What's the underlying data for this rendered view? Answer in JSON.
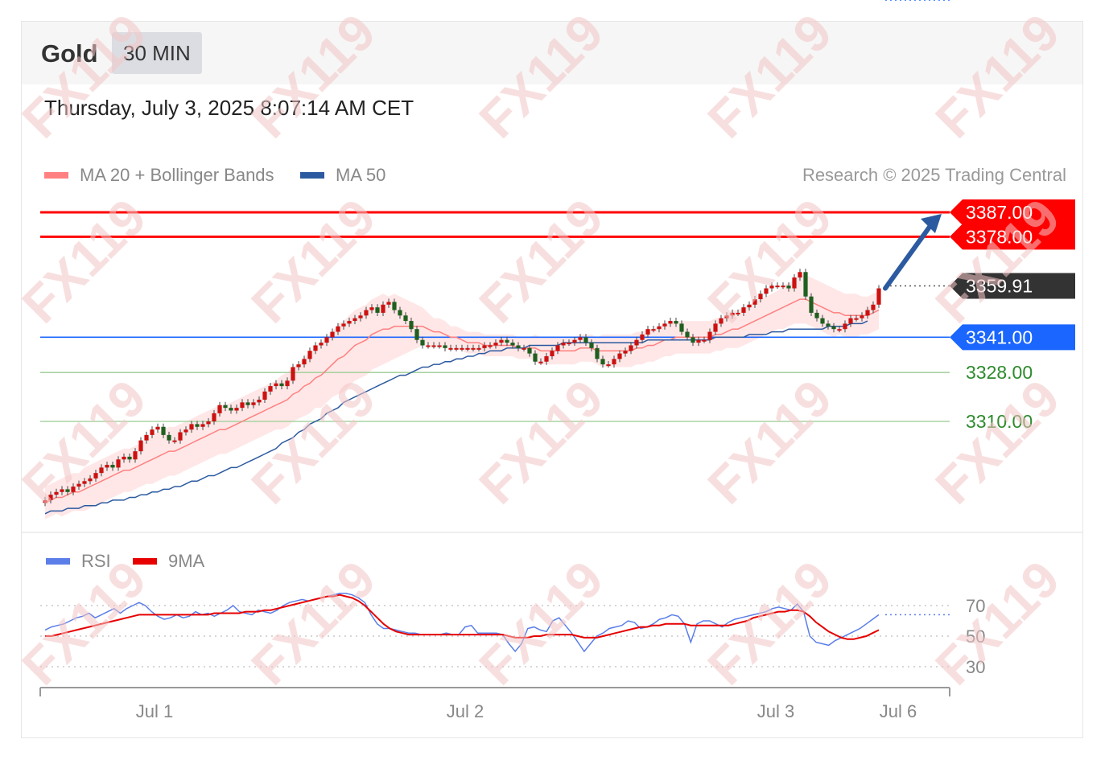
{
  "header": {
    "symbol": "Gold",
    "timeframe": "30 MIN",
    "datetime": "Thursday, July 3, 2025 8:07:14 AM CET"
  },
  "legend": {
    "ma20_label": "MA 20 + Bollinger Bands",
    "ma50_label": "MA 50",
    "credit": "Research © 2025 Trading Central"
  },
  "rsi_legend": {
    "rsi_label": "RSI",
    "ma9_label": "9MA"
  },
  "watermark": "FX119",
  "colors": {
    "resistance": "#ff0000",
    "current": "#333333",
    "pivot": "#1a66ff",
    "support": "#2e8b2e",
    "ma20": "#ff8080",
    "ma50": "#2c5aa0",
    "rsi": "#5b7ee8",
    "ma9": "#e60000",
    "candle_up": "#cc1111",
    "candle_down": "#1f5f1f",
    "band_fill": "#ffe3e3",
    "arrow": "#2c5aa0"
  },
  "chart_data": {
    "type": "candlestick",
    "x_ticks": [
      "Jul 1",
      "Jul 2",
      "Jul 3",
      "Jul 6"
    ],
    "price_levels": [
      {
        "label": "3387.00",
        "value": 3387.0,
        "kind": "resistance"
      },
      {
        "label": "3378.00",
        "value": 3378.0,
        "kind": "resistance"
      },
      {
        "label": "3359.91",
        "value": 3359.91,
        "kind": "current"
      },
      {
        "label": "3341.00",
        "value": 3341.0,
        "kind": "pivot"
      },
      {
        "label": "3328.00",
        "value": 3328.0,
        "kind": "support"
      },
      {
        "label": "3310.00",
        "value": 3310.0,
        "kind": "support"
      }
    ],
    "price_range": [
      3276,
      3395
    ],
    "close_series": [
      3281,
      3283,
      3284,
      3285,
      3284,
      3286,
      3287,
      3288,
      3289,
      3291,
      3293,
      3294,
      3293,
      3296,
      3297,
      3296,
      3299,
      3303,
      3305,
      3307,
      3308,
      3305,
      3303,
      3303,
      3306,
      3307,
      3309,
      3308,
      3309,
      3310,
      3313,
      3316,
      3315,
      3314,
      3315,
      3317,
      3316,
      3317,
      3318,
      3321,
      3323,
      3324,
      3323,
      3325,
      3330,
      3331,
      3333,
      3336,
      3338,
      3339,
      3341,
      3343,
      3345,
      3346,
      3347,
      3348,
      3349,
      3351,
      3352,
      3350,
      3353,
      3354,
      3351,
      3349,
      3347,
      3344,
      3340,
      3338,
      3338,
      3338,
      3338,
      3337,
      3337,
      3337,
      3337,
      3337,
      3337,
      3337,
      3338,
      3338,
      3339,
      3340,
      3339,
      3338,
      3337,
      3337,
      3335,
      3332,
      3332,
      3334,
      3336,
      3338,
      3339,
      3339,
      3340,
      3341,
      3339,
      3337,
      3333,
      3331,
      3331,
      3333,
      3335,
      3336,
      3338,
      3340,
      3342,
      3344,
      3344,
      3345,
      3346,
      3347,
      3346,
      3343,
      3341,
      3339,
      3340,
      3340,
      3343,
      3346,
      3348,
      3349,
      3350,
      3350,
      3352,
      3353,
      3355,
      3357,
      3359,
      3360,
      3360,
      3360,
      3359,
      3363,
      3365,
      3356,
      3350,
      3348,
      3346,
      3345,
      3344,
      3344,
      3346,
      3348,
      3348,
      3349,
      3351,
      3353,
      3359
    ],
    "ma20_series": [
      3280,
      3281,
      3282,
      3282,
      3283,
      3284,
      3284,
      3285,
      3286,
      3287,
      3288,
      3289,
      3290,
      3291,
      3292,
      3292,
      3293,
      3294,
      3295,
      3296,
      3297,
      3298,
      3299,
      3299,
      3300,
      3301,
      3302,
      3303,
      3304,
      3305,
      3306,
      3307,
      3307,
      3308,
      3309,
      3310,
      3311,
      3312,
      3313,
      3314,
      3315,
      3316,
      3317,
      3318,
      3320,
      3321,
      3323,
      3324,
      3326,
      3327,
      3329,
      3331,
      3333,
      3334,
      3336,
      3338,
      3339,
      3340,
      3342,
      3343,
      3344,
      3344,
      3345,
      3345,
      3345,
      3345,
      3345,
      3345,
      3344,
      3343,
      3343,
      3342,
      3341,
      3341,
      3340,
      3339,
      3339,
      3339,
      3338,
      3338,
      3338,
      3338,
      3338,
      3338,
      3337,
      3337,
      3337,
      3337,
      3336,
      3336,
      3336,
      3336,
      3336,
      3336,
      3336,
      3337,
      3337,
      3337,
      3336,
      3336,
      3336,
      3336,
      3336,
      3336,
      3336,
      3337,
      3337,
      3338,
      3338,
      3339,
      3340,
      3340,
      3341,
      3341,
      3341,
      3341,
      3341,
      3341,
      3341,
      3342,
      3342,
      3343,
      3344,
      3344,
      3345,
      3346,
      3347,
      3348,
      3349,
      3350,
      3351,
      3352,
      3353,
      3354,
      3355,
      3355,
      3354,
      3353,
      3352,
      3351,
      3350,
      3350,
      3349,
      3349,
      3349,
      3349,
      3349,
      3350,
      3351
    ],
    "ma50_series": [
      3276,
      3277,
      3277,
      3277,
      3278,
      3278,
      3278,
      3279,
      3279,
      3279,
      3280,
      3280,
      3281,
      3281,
      3281,
      3282,
      3282,
      3283,
      3283,
      3284,
      3284,
      3285,
      3285,
      3286,
      3286,
      3287,
      3288,
      3288,
      3289,
      3290,
      3290,
      3291,
      3292,
      3293,
      3293,
      3294,
      3295,
      3296,
      3297,
      3298,
      3299,
      3300,
      3302,
      3303,
      3304,
      3306,
      3307,
      3309,
      3310,
      3311,
      3313,
      3314,
      3315,
      3317,
      3318,
      3319,
      3320,
      3321,
      3322,
      3323,
      3324,
      3325,
      3326,
      3327,
      3327,
      3328,
      3329,
      3330,
      3330,
      3331,
      3331,
      3332,
      3332,
      3333,
      3333,
      3334,
      3334,
      3335,
      3335,
      3336,
      3336,
      3336,
      3337,
      3337,
      3337,
      3337,
      3338,
      3338,
      3338,
      3338,
      3338,
      3338,
      3339,
      3339,
      3339,
      3339,
      3339,
      3339,
      3339,
      3339,
      3339,
      3339,
      3339,
      3339,
      3339,
      3339,
      3339,
      3340,
      3340,
      3340,
      3340,
      3340,
      3340,
      3340,
      3340,
      3340,
      3340,
      3340,
      3340,
      3341,
      3341,
      3341,
      3341,
      3341,
      3341,
      3342,
      3342,
      3342,
      3342,
      3343,
      3343,
      3343,
      3344,
      3344,
      3344,
      3344,
      3344,
      3344,
      3344,
      3345,
      3345,
      3345,
      3345,
      3346,
      3346,
      3346,
      3347
    ],
    "band_width": [
      6,
      6,
      6,
      7,
      7,
      7,
      7,
      8,
      8,
      8,
      8,
      8,
      8,
      8,
      8,
      8,
      8,
      8,
      8,
      9,
      9,
      9,
      9,
      9,
      9,
      9,
      9,
      9,
      9,
      9,
      9,
      9,
      9,
      9,
      9,
      9,
      9,
      9,
      9,
      9,
      9,
      9,
      10,
      10,
      10,
      10,
      11,
      11,
      11,
      12,
      12,
      12,
      13,
      13,
      13,
      13,
      13,
      13,
      13,
      13,
      13,
      12,
      12,
      11,
      10,
      9,
      8,
      7,
      6,
      5,
      5,
      5,
      4,
      4,
      4,
      4,
      4,
      4,
      4,
      4,
      4,
      4,
      4,
      4,
      4,
      4,
      4,
      5,
      5,
      5,
      5,
      5,
      5,
      5,
      5,
      5,
      5,
      5,
      5,
      6,
      6,
      6,
      6,
      6,
      6,
      6,
      6,
      6,
      6,
      6,
      6,
      6,
      6,
      6,
      6,
      6,
      6,
      6,
      6,
      6,
      6,
      6,
      7,
      7,
      7,
      7,
      7,
      7,
      7,
      7,
      7,
      8,
      8,
      8,
      9,
      9,
      9,
      9,
      9,
      9,
      9,
      8,
      8,
      8,
      8,
      7,
      7,
      7,
      7
    ],
    "projection": {
      "from": 3359,
      "to": 3387
    },
    "rsi": {
      "levels": [
        70,
        50,
        30
      ],
      "rsi_series": [
        54,
        56,
        57,
        58,
        60,
        62,
        63,
        65,
        62,
        64,
        66,
        68,
        65,
        68,
        70,
        72,
        70,
        66,
        63,
        61,
        62,
        64,
        62,
        63,
        66,
        64,
        65,
        63,
        65,
        67,
        70,
        66,
        65,
        64,
        67,
        66,
        65,
        67,
        70,
        72,
        73,
        74,
        73,
        74,
        75,
        76,
        77,
        78,
        78,
        77,
        75,
        72,
        64,
        58,
        55,
        55,
        54,
        53,
        52,
        52,
        51,
        51,
        51,
        51,
        52,
        51,
        51,
        56,
        57,
        52,
        52,
        52,
        52,
        51,
        45,
        40,
        45,
        55,
        56,
        54,
        53,
        60,
        62,
        57,
        52,
        46,
        40,
        45,
        50,
        52,
        55,
        56,
        57,
        60,
        59,
        55,
        56,
        58,
        61,
        62,
        64,
        63,
        58,
        46,
        58,
        60,
        60,
        58,
        56,
        59,
        61,
        62,
        63,
        64,
        65,
        66,
        68,
        69,
        68,
        67,
        71,
        66,
        50,
        46,
        45,
        44,
        47,
        49,
        51,
        53,
        55,
        58,
        61,
        64
      ],
      "ma9_series": [
        50,
        50,
        51,
        52,
        53,
        54,
        55,
        56,
        57,
        58,
        59,
        60,
        61,
        62,
        63,
        64,
        64,
        64,
        64,
        64,
        64,
        64,
        64,
        64,
        64,
        64,
        64,
        65,
        65,
        65,
        65,
        65,
        66,
        66,
        66,
        67,
        67,
        68,
        69,
        70,
        71,
        72,
        73,
        74,
        75,
        76,
        76,
        77,
        76,
        75,
        73,
        70,
        66,
        62,
        58,
        55,
        53,
        52,
        51,
        51,
        51,
        51,
        51,
        51,
        51,
        51,
        51,
        51,
        51,
        51,
        51,
        51,
        51,
        51,
        50,
        49,
        49,
        49,
        50,
        50,
        51,
        51,
        51,
        51,
        51,
        50,
        49,
        49,
        49,
        50,
        51,
        52,
        53,
        54,
        55,
        56,
        56,
        57,
        57,
        58,
        58,
        58,
        58,
        57,
        57,
        57,
        57,
        57,
        57,
        57,
        58,
        59,
        60,
        62,
        63,
        64,
        65,
        66,
        66,
        67,
        67,
        66,
        63,
        59,
        56,
        53,
        51,
        49,
        48,
        48,
        49,
        50,
        52,
        54
      ]
    }
  }
}
